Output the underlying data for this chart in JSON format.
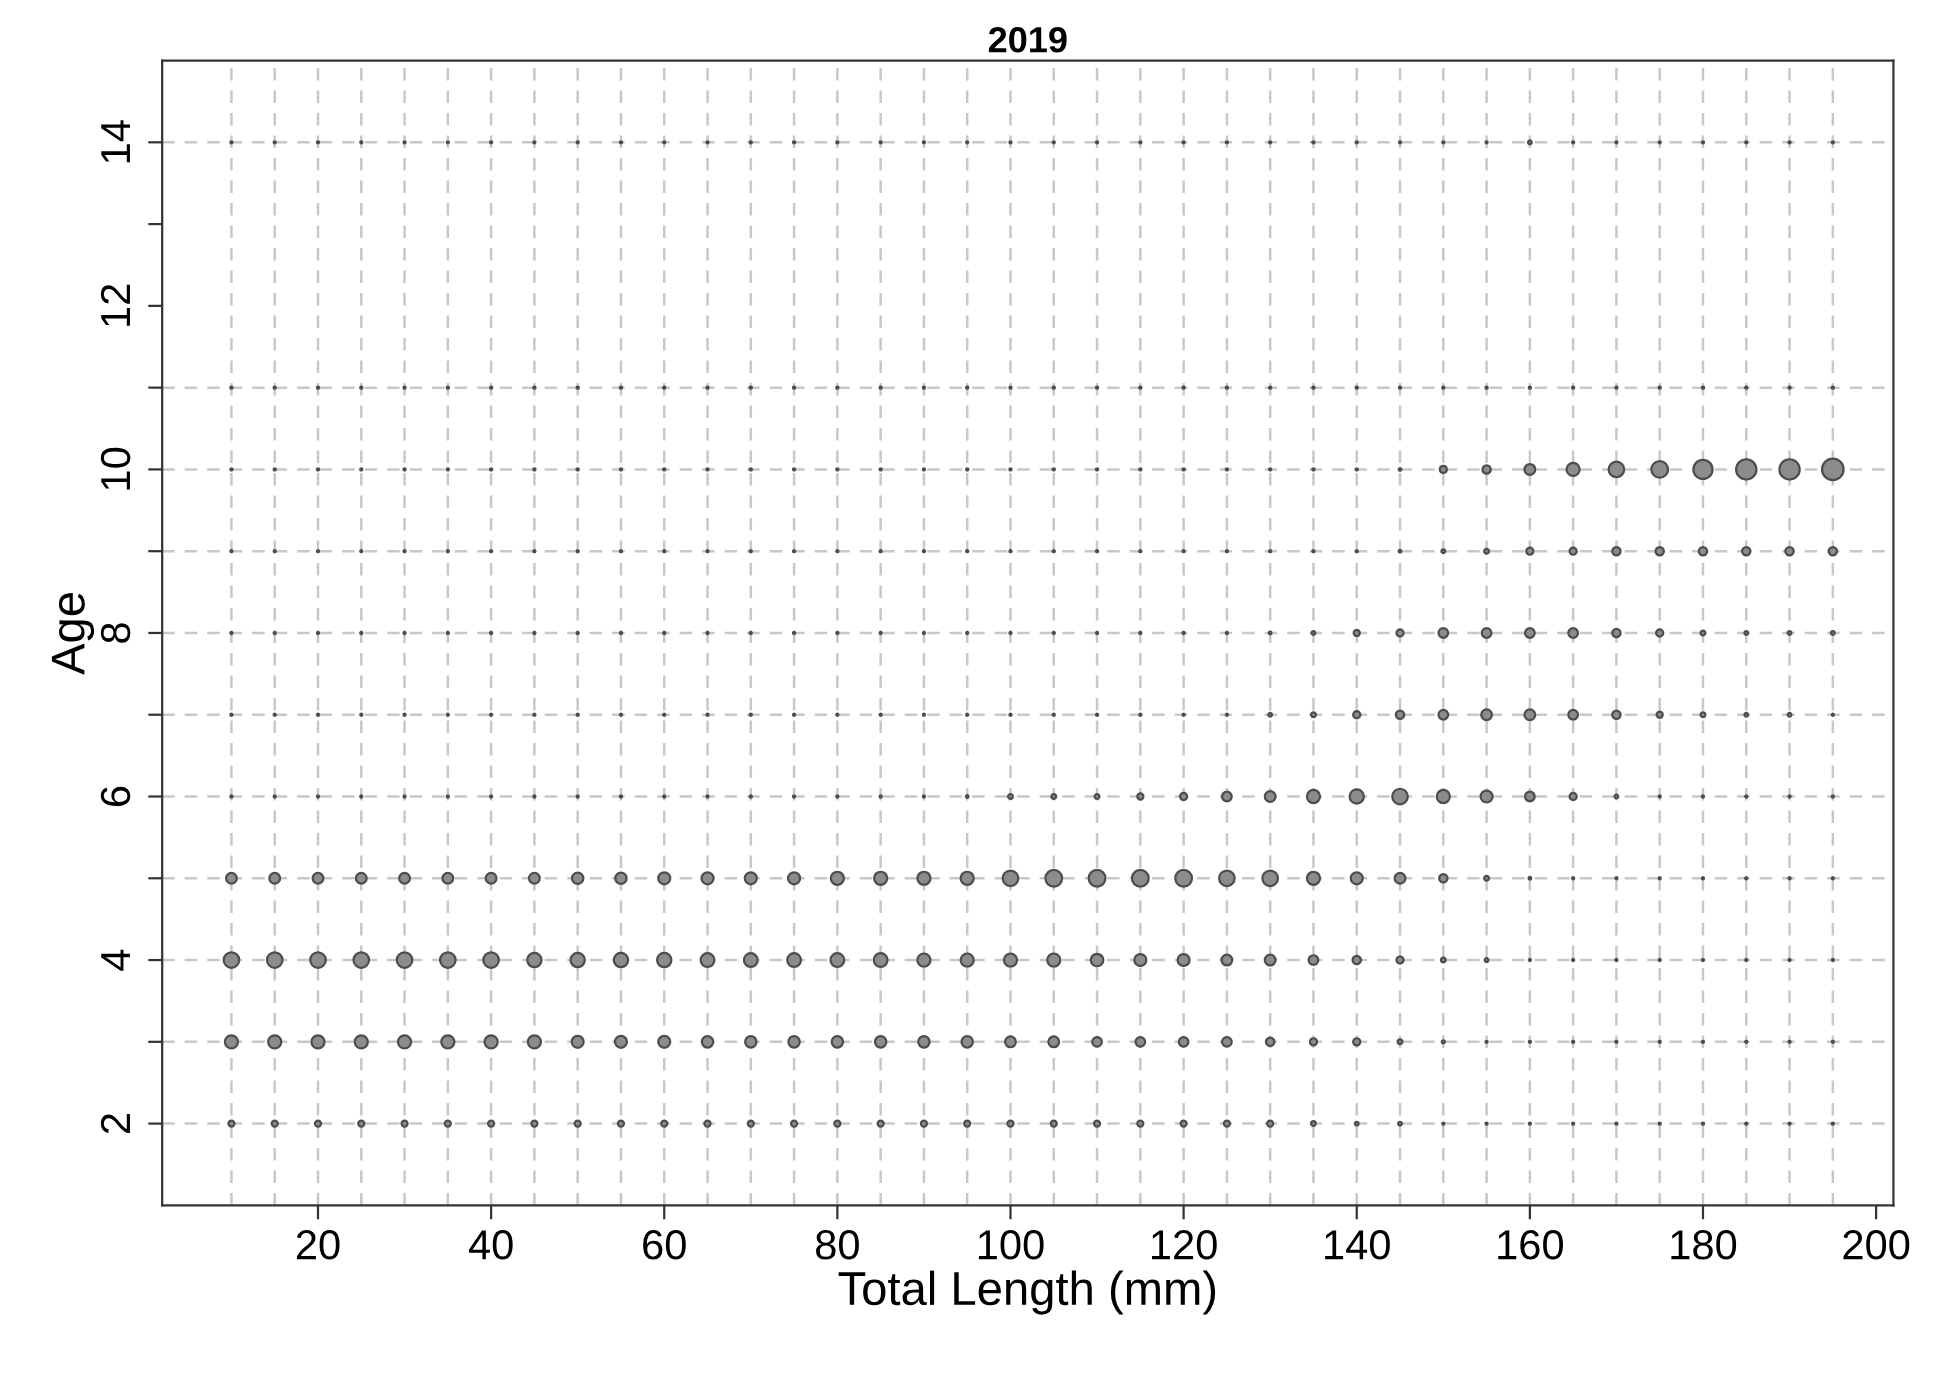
{
  "chart_data": {
    "type": "bubble",
    "title": "2019",
    "xlabel": "Total Length (mm)",
    "ylabel": "Age",
    "x": [
      10,
      15,
      20,
      25,
      30,
      35,
      40,
      45,
      50,
      55,
      60,
      65,
      70,
      75,
      80,
      85,
      90,
      95,
      100,
      105,
      110,
      115,
      120,
      125,
      130,
      135,
      140,
      145,
      150,
      155,
      160,
      165,
      170,
      175,
      180,
      185,
      190,
      195
    ],
    "series": [
      {
        "color": "#8c8c8c",
        "values": [
          2,
          2,
          2,
          2,
          2,
          2,
          2,
          2,
          2,
          2,
          2,
          2,
          2,
          2,
          2,
          2,
          2,
          2,
          2,
          2,
          2,
          2,
          2,
          2,
          2,
          2,
          2,
          2,
          2,
          2,
          2,
          2,
          2,
          2,
          2,
          2,
          2,
          2
        ],
        "sizes": [
          0.08,
          0.08,
          0.08,
          0.08,
          0.08,
          0.08,
          0.08,
          0.08,
          0.08,
          0.08,
          0.08,
          0.08,
          0.08,
          0.08,
          0.08,
          0.08,
          0.08,
          0.08,
          0.08,
          0.08,
          0.08,
          0.08,
          0.08,
          0.08,
          0.08,
          0.05,
          0.03,
          0.03,
          0.01,
          0.01,
          0.01,
          0.01,
          0.01,
          0.01,
          0.01,
          0.01,
          0.01,
          0.01
        ]
      },
      {
        "color": "#8c8c8c",
        "values": [
          3,
          3,
          3,
          3,
          3,
          3,
          3,
          3,
          3,
          3,
          3,
          3,
          3,
          3,
          3,
          3,
          3,
          3,
          3,
          3,
          3,
          3,
          3,
          3,
          3,
          3,
          3,
          3,
          3,
          3,
          3,
          3,
          3,
          3,
          3,
          3,
          3,
          3
        ],
        "sizes": [
          0.37,
          0.37,
          0.37,
          0.37,
          0.37,
          0.37,
          0.37,
          0.37,
          0.31,
          0.31,
          0.31,
          0.28,
          0.28,
          0.28,
          0.28,
          0.28,
          0.28,
          0.28,
          0.25,
          0.25,
          0.2,
          0.2,
          0.2,
          0.2,
          0.15,
          0.11,
          0.11,
          0.05,
          0.02,
          0.01,
          0.01,
          0.01,
          0.01,
          0.01,
          0.01,
          0.01,
          0.01,
          0.01
        ]
      },
      {
        "color": "#8c8c8c",
        "values": [
          4,
          4,
          4,
          4,
          4,
          4,
          4,
          4,
          4,
          4,
          4,
          4,
          4,
          4,
          4,
          4,
          4,
          4,
          4,
          4,
          4,
          4,
          4,
          4,
          4,
          4,
          4,
          4,
          4,
          4,
          4,
          4,
          4,
          4,
          4,
          4,
          4,
          4
        ],
        "sizes": [
          0.52,
          0.52,
          0.52,
          0.52,
          0.52,
          0.52,
          0.52,
          0.44,
          0.44,
          0.44,
          0.44,
          0.41,
          0.41,
          0.41,
          0.41,
          0.41,
          0.37,
          0.37,
          0.37,
          0.37,
          0.34,
          0.31,
          0.31,
          0.25,
          0.25,
          0.2,
          0.15,
          0.11,
          0.05,
          0.03,
          0.01,
          0.01,
          0.01,
          0.01,
          0.01,
          0.01,
          0.01,
          0.01
        ]
      },
      {
        "color": "#8c8c8c",
        "values": [
          5,
          5,
          5,
          5,
          5,
          5,
          5,
          5,
          5,
          5,
          5,
          5,
          5,
          5,
          5,
          5,
          5,
          5,
          5,
          5,
          5,
          5,
          5,
          5,
          5,
          5,
          5,
          5,
          5,
          5,
          5,
          5,
          5,
          5,
          5,
          5,
          5,
          5
        ],
        "sizes": [
          0.25,
          0.25,
          0.25,
          0.25,
          0.25,
          0.25,
          0.25,
          0.25,
          0.28,
          0.28,
          0.31,
          0.31,
          0.31,
          0.31,
          0.37,
          0.37,
          0.37,
          0.37,
          0.52,
          0.6,
          0.6,
          0.6,
          0.6,
          0.52,
          0.52,
          0.37,
          0.31,
          0.25,
          0.15,
          0.05,
          0.015,
          0.01,
          0.01,
          0.01,
          0.01,
          0.01,
          0.01,
          0.01
        ]
      },
      {
        "color": "#8c8c8c",
        "values": [
          6,
          6,
          6,
          6,
          6,
          6,
          6,
          6,
          6,
          6,
          6,
          6,
          6,
          6,
          6,
          6,
          6,
          6,
          6,
          6,
          6,
          6,
          6,
          6,
          6,
          6,
          6,
          6,
          6,
          6,
          6,
          6,
          6,
          6,
          6,
          6,
          6,
          6
        ],
        "sizes": [
          0.01,
          0.01,
          0.01,
          0.01,
          0.01,
          0.01,
          0.01,
          0.01,
          0.01,
          0.01,
          0.01,
          0.01,
          0.01,
          0.01,
          0.01,
          0.01,
          0.01,
          0.015,
          0.05,
          0.05,
          0.05,
          0.08,
          0.11,
          0.2,
          0.25,
          0.37,
          0.44,
          0.52,
          0.37,
          0.31,
          0.2,
          0.11,
          0.03,
          0.01,
          0.01,
          0.01,
          0.01,
          0.01
        ]
      },
      {
        "color": "#8c8c8c",
        "values": [
          7,
          7,
          7,
          7,
          7,
          7,
          7,
          7,
          7,
          7,
          7,
          7,
          7,
          7,
          7,
          7,
          7,
          7,
          7,
          7,
          7,
          7,
          7,
          7,
          7,
          7,
          7,
          7,
          7,
          7,
          7,
          7,
          7,
          7,
          7,
          7,
          7,
          7
        ],
        "sizes": [
          0.01,
          0.01,
          0.01,
          0.01,
          0.01,
          0.01,
          0.01,
          0.01,
          0.01,
          0.01,
          0.01,
          0.01,
          0.01,
          0.01,
          0.01,
          0.01,
          0.01,
          0.01,
          0.01,
          0.01,
          0.01,
          0.01,
          0.01,
          0.01,
          0.03,
          0.05,
          0.11,
          0.15,
          0.2,
          0.25,
          0.25,
          0.2,
          0.15,
          0.08,
          0.05,
          0.03,
          0.03,
          0.01
        ]
      },
      {
        "color": "#8c8c8c",
        "values": [
          8,
          8,
          8,
          8,
          8,
          8,
          8,
          8,
          8,
          8,
          8,
          8,
          8,
          8,
          8,
          8,
          8,
          8,
          8,
          8,
          8,
          8,
          8,
          8,
          8,
          8,
          8,
          8,
          8,
          8,
          8,
          8,
          8,
          8,
          8,
          8,
          8,
          8
        ],
        "sizes": [
          0.01,
          0.01,
          0.01,
          0.01,
          0.01,
          0.01,
          0.01,
          0.01,
          0.01,
          0.01,
          0.01,
          0.01,
          0.01,
          0.01,
          0.01,
          0.01,
          0.01,
          0.01,
          0.01,
          0.01,
          0.01,
          0.01,
          0.01,
          0.01,
          0.015,
          0.03,
          0.08,
          0.11,
          0.2,
          0.2,
          0.2,
          0.2,
          0.15,
          0.11,
          0.05,
          0.03,
          0.03,
          0.03
        ]
      },
      {
        "color": "#8c8c8c",
        "values": [
          9,
          9,
          9,
          9,
          9,
          9,
          9,
          9,
          9,
          9,
          9,
          9,
          9,
          9,
          9,
          9,
          9,
          9,
          9,
          9,
          9,
          9,
          9,
          9,
          9,
          9,
          9,
          9,
          9,
          9,
          9,
          9,
          9,
          9,
          9,
          9,
          9,
          9
        ],
        "sizes": [
          0.01,
          0.01,
          0.01,
          0.01,
          0.01,
          0.01,
          0.01,
          0.01,
          0.01,
          0.01,
          0.01,
          0.01,
          0.01,
          0.01,
          0.01,
          0.01,
          0.01,
          0.01,
          0.01,
          0.01,
          0.01,
          0.01,
          0.01,
          0.01,
          0.01,
          0.01,
          0.01,
          0.015,
          0.03,
          0.05,
          0.11,
          0.11,
          0.15,
          0.15,
          0.15,
          0.15,
          0.15,
          0.15
        ]
      },
      {
        "color": "#8c8c8c",
        "values": [
          10,
          10,
          10,
          10,
          10,
          10,
          10,
          10,
          10,
          10,
          10,
          10,
          10,
          10,
          10,
          10,
          10,
          10,
          10,
          10,
          10,
          10,
          10,
          10,
          10,
          10,
          10,
          10,
          10,
          10,
          10,
          10,
          10,
          10,
          10,
          10,
          10,
          10
        ],
        "sizes": [
          0.01,
          0.01,
          0.01,
          0.01,
          0.01,
          0.01,
          0.01,
          0.01,
          0.01,
          0.01,
          0.01,
          0.01,
          0.01,
          0.01,
          0.01,
          0.01,
          0.01,
          0.01,
          0.01,
          0.01,
          0.01,
          0.01,
          0.01,
          0.01,
          0.01,
          0.01,
          0.01,
          0.015,
          0.11,
          0.15,
          0.25,
          0.37,
          0.52,
          0.6,
          0.79,
          0.89,
          0.89,
          1
        ]
      },
      {
        "color": "#8c8c8c",
        "values": [
          11,
          11,
          11,
          11,
          11,
          11,
          11,
          11,
          11,
          11,
          11,
          11,
          11,
          11,
          11,
          11,
          11,
          11,
          11,
          11,
          11,
          11,
          11,
          11,
          11,
          11,
          11,
          11,
          11,
          11,
          11,
          11,
          11,
          11,
          11,
          11,
          11,
          11
        ],
        "sizes": [
          0.01,
          0.01,
          0.01,
          0.01,
          0.01,
          0.01,
          0.01,
          0.01,
          0.01,
          0.01,
          0.01,
          0.01,
          0.01,
          0.01,
          0.01,
          0.01,
          0.01,
          0.01,
          0.01,
          0.01,
          0.01,
          0.01,
          0.01,
          0.01,
          0.01,
          0.01,
          0.01,
          0.01,
          0.01,
          0.01,
          0.01,
          0.01,
          0.01,
          0.01,
          0.01,
          0.01,
          0.01,
          0.01
        ]
      },
      {
        "color": "#8c8c8c",
        "values": [
          14,
          14,
          14,
          14,
          14,
          14,
          14,
          14,
          14,
          14,
          14,
          14,
          14,
          14,
          14,
          14,
          14,
          14,
          14,
          14,
          14,
          14,
          14,
          14,
          14,
          14,
          14,
          14,
          14,
          14,
          14,
          14,
          14,
          14,
          14,
          14,
          14,
          14
        ],
        "sizes": [
          0.01,
          0.01,
          0.01,
          0.01,
          0.01,
          0.01,
          0.01,
          0.01,
          0.01,
          0.01,
          0.01,
          0.01,
          0.01,
          0.01,
          0.01,
          0.01,
          0.01,
          0.01,
          0.01,
          0.01,
          0.01,
          0.01,
          0.01,
          0.01,
          0.01,
          0.01,
          0.01,
          0.01,
          0.01,
          0.01,
          0.03,
          0.01,
          0.01,
          0.01,
          0.01,
          0.01,
          0.01,
          0.01
        ]
      }
    ],
    "xlim": [
      2,
      202
    ],
    "ylim": [
      1,
      15
    ],
    "xticks": [
      20,
      40,
      60,
      80,
      100,
      120,
      140,
      160,
      180,
      200
    ],
    "yticks": [
      2,
      {
        "value": 3,
        "label": null
      },
      4,
      {
        "value": 5,
        "label": null
      },
      6,
      {
        "value": 7,
        "label": null
      },
      8,
      {
        "value": 9,
        "label": null
      },
      10,
      {
        "value": 11,
        "label": null
      },
      12,
      {
        "value": 13,
        "label": null
      },
      14
    ],
    "grid": true
  }
}
